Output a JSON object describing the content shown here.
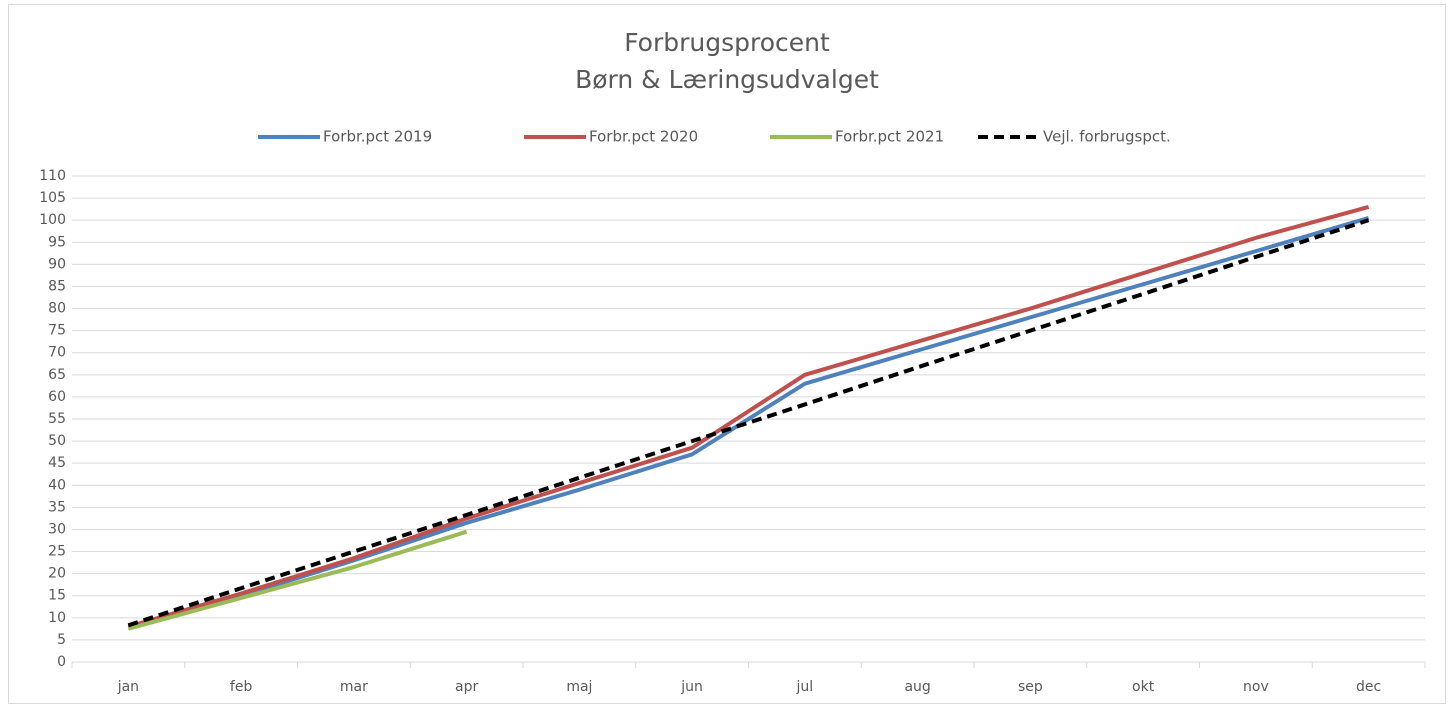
{
  "chart_data": {
    "type": "line",
    "title": [
      "Forbrugsprocent",
      "Børn & Læringsudvalget"
    ],
    "categories": [
      "jan",
      "feb",
      "mar",
      "apr",
      "maj",
      "jun",
      "jul",
      "aug",
      "sep",
      "okt",
      "nov",
      "dec"
    ],
    "series": [
      {
        "name": "Forbr.pct 2019",
        "color": "#4f81bd",
        "dash": false,
        "values": [
          7.7,
          15,
          23,
          31.5,
          39,
          47,
          63,
          70.5,
          78,
          85.5,
          93,
          100.5
        ]
      },
      {
        "name": "Forbr.pct 2020",
        "color": "#c0504d",
        "dash": false,
        "values": [
          8,
          15.5,
          23.5,
          32.5,
          40.5,
          48.5,
          65,
          72.5,
          80,
          88,
          96,
          103
        ]
      },
      {
        "name": "Forbr.pct 2021",
        "color": "#9bbb59",
        "dash": false,
        "values": [
          7.5,
          14.5,
          21.5,
          29.5,
          null,
          null,
          null,
          null,
          null,
          null,
          null,
          null
        ]
      },
      {
        "name": "Vejl. forbrugspct.",
        "color": "#000000",
        "dash": true,
        "values": [
          8.3,
          16.7,
          25,
          33.3,
          41.7,
          50,
          58.3,
          66.7,
          75,
          83.3,
          91.7,
          100
        ]
      }
    ],
    "ylim": [
      0,
      110
    ],
    "yticks": [
      0,
      5,
      10,
      15,
      20,
      25,
      30,
      35,
      40,
      45,
      50,
      55,
      60,
      65,
      70,
      75,
      80,
      85,
      90,
      95,
      100,
      105,
      110
    ],
    "grid": true,
    "legend": "top"
  }
}
